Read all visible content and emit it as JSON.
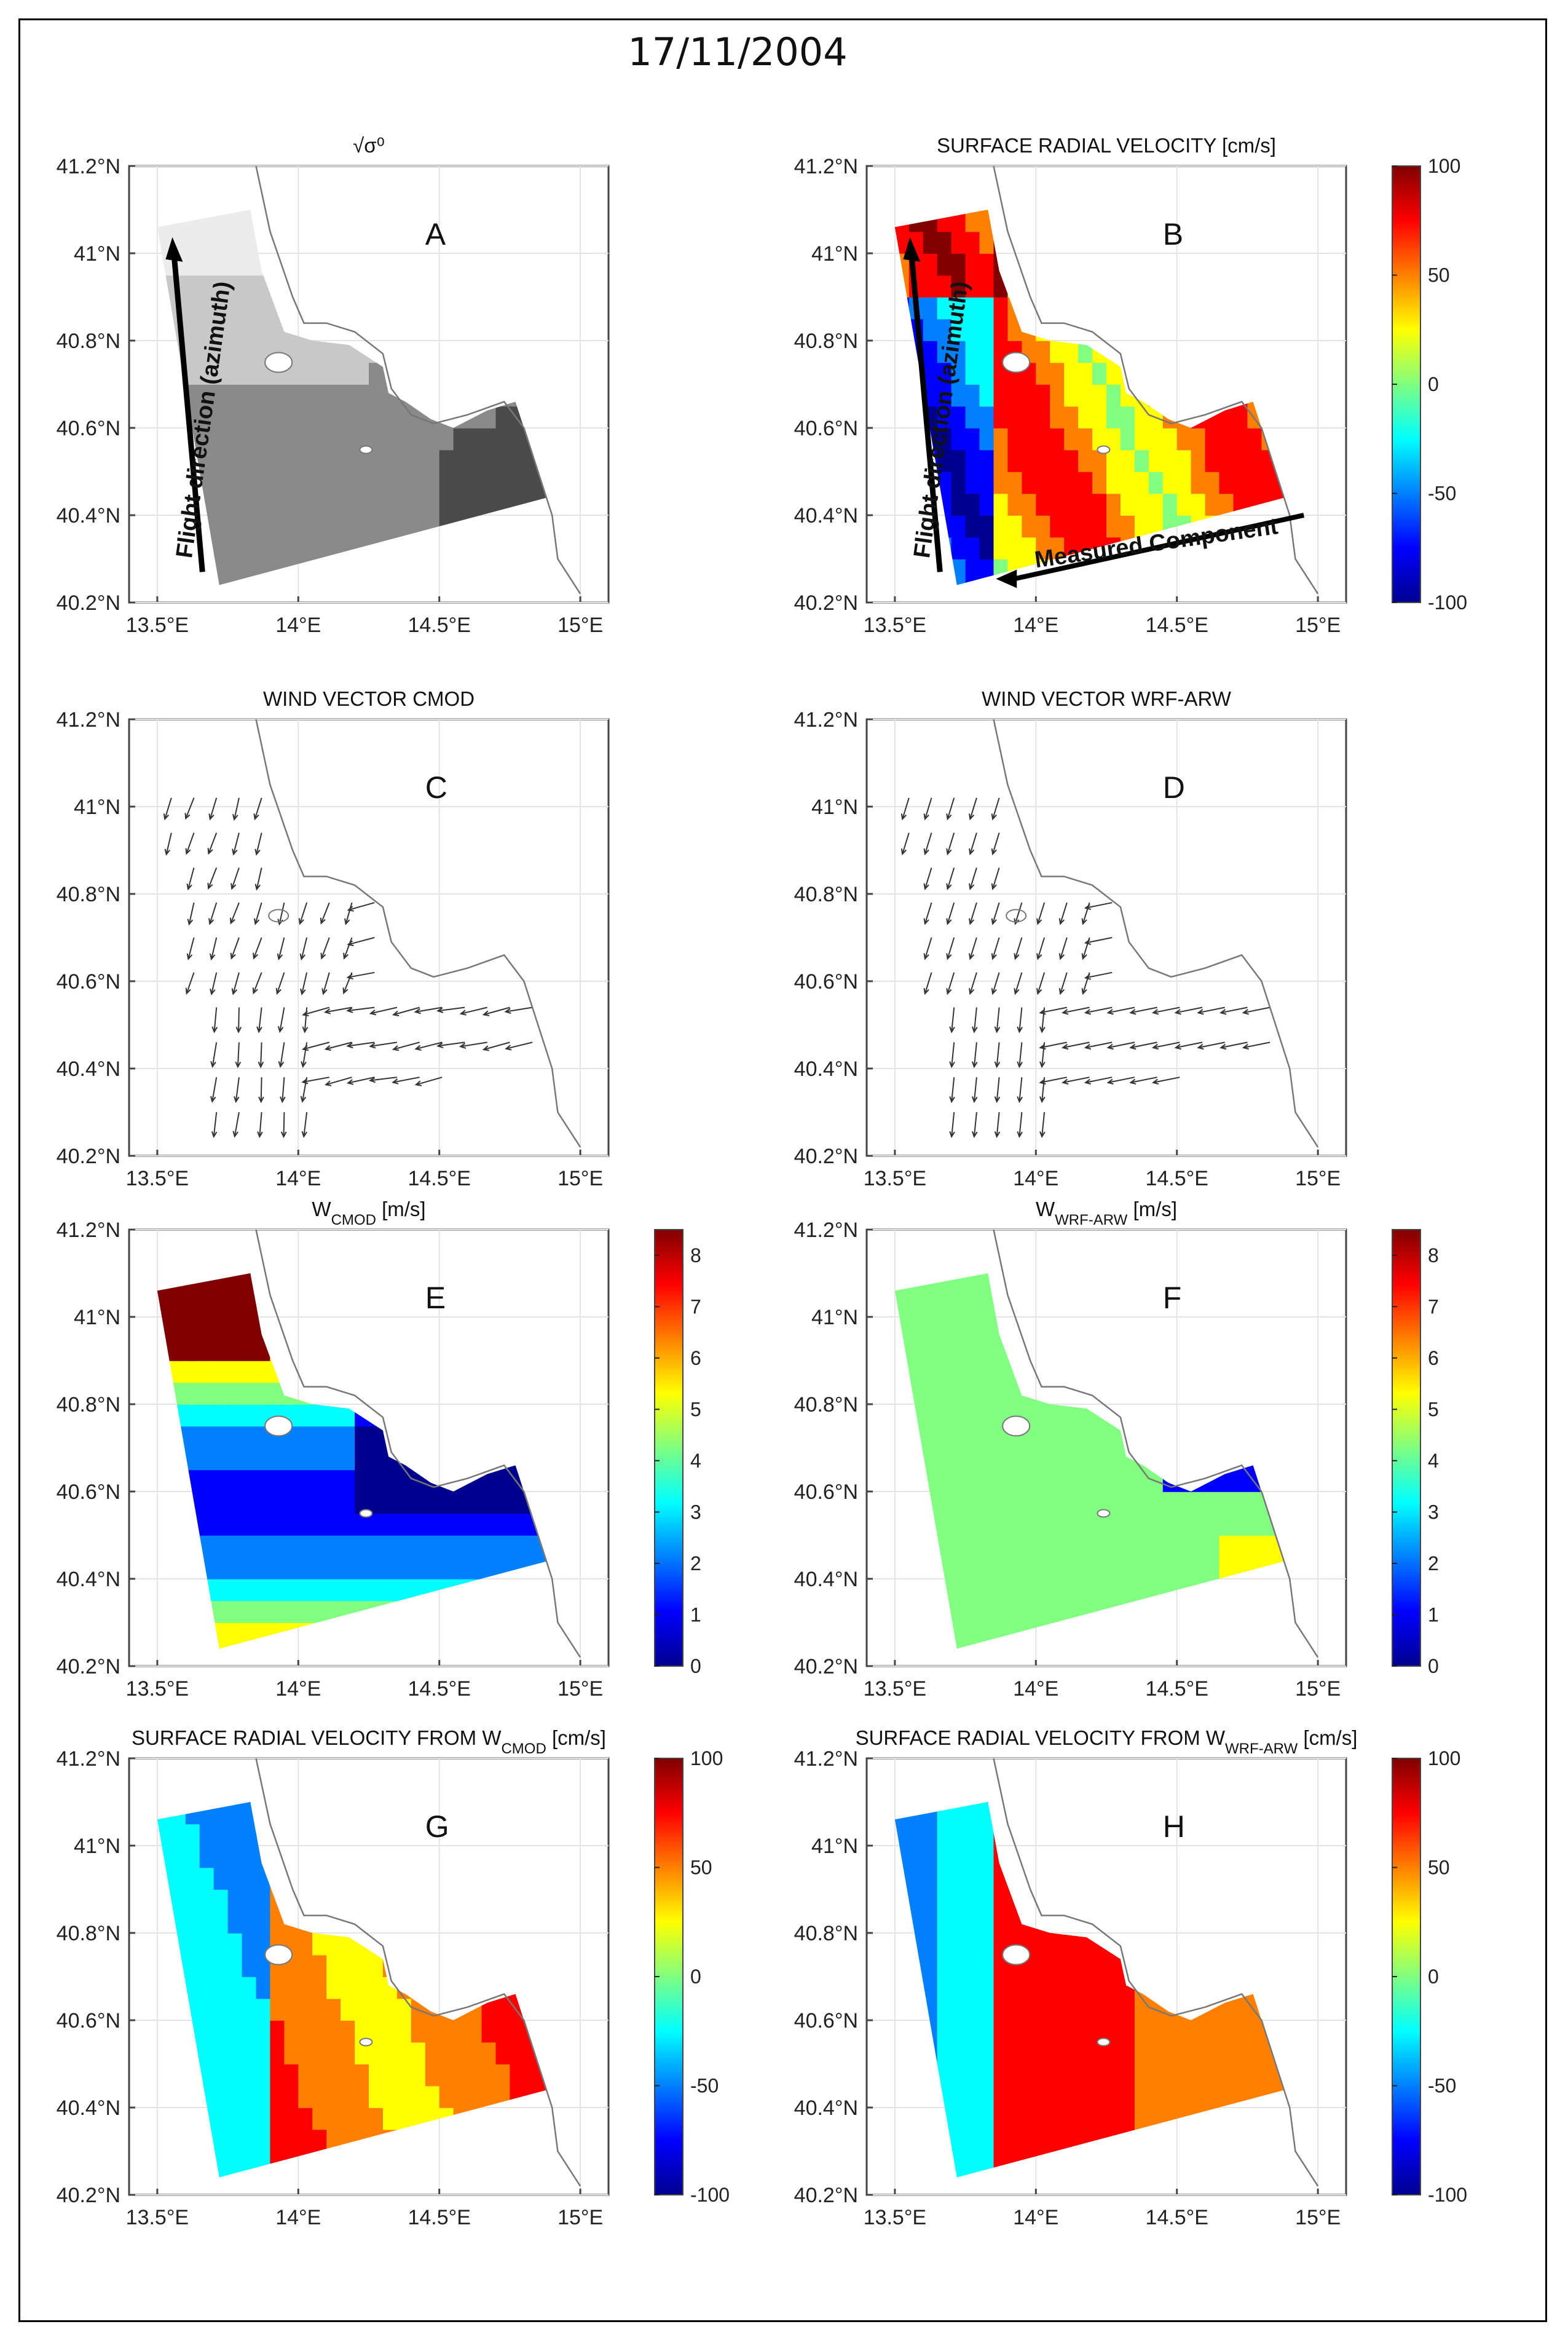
{
  "figure_title": "17/11/2004",
  "axes": {
    "lat_ticks": [
      "41.2°N",
      "41°N",
      "40.8°N",
      "40.6°N",
      "40.4°N",
      "40.2°N"
    ],
    "lat_values": [
      41.2,
      41.0,
      40.8,
      40.6,
      40.4,
      40.2
    ],
    "lon_ticks": [
      "13.5°E",
      "14°E",
      "14.5°E",
      "15°E"
    ],
    "lon_values": [
      13.5,
      14.0,
      14.5,
      15.0
    ],
    "xlim": [
      13.4,
      15.1
    ],
    "ylim": [
      40.2,
      41.2
    ]
  },
  "colormaps": {
    "gray": [
      "#4a4a4a",
      "#8a8a8a",
      "#c8c8c8",
      "#ececec"
    ],
    "jet": [
      "#00008f",
      "#0000ff",
      "#0080ff",
      "#00ffff",
      "#80ff80",
      "#ffff00",
      "#ff8000",
      "#ff0000",
      "#800000"
    ]
  },
  "panels": [
    {
      "id": "A",
      "letter": "A",
      "title": "√σ⁰",
      "type": "image",
      "cmap": "gray",
      "annotations": {
        "flight": "Flight direction (azimuth)"
      }
    },
    {
      "id": "B",
      "letter": "B",
      "title": "SURFACE RADIAL VELOCITY [cm/s]",
      "type": "image",
      "cmap": "jet",
      "colorbar": {
        "ticks": [
          "100",
          "50",
          "0",
          "-50",
          "-100"
        ],
        "range": [
          -100,
          100
        ]
      },
      "annotations": {
        "flight": "Flight direction (azimuth)",
        "measured": "Measured Component"
      }
    },
    {
      "id": "C",
      "letter": "C",
      "title": "WIND VECTOR CMOD",
      "type": "quiver"
    },
    {
      "id": "D",
      "letter": "D",
      "title": "WIND VECTOR WRF-ARW",
      "type": "quiver"
    },
    {
      "id": "E",
      "letter": "E",
      "title_main": "W",
      "title_sub": "CMOD",
      "title_unit": "  [m/s]",
      "type": "image",
      "cmap": "jet",
      "colorbar": {
        "ticks": [
          "8",
          "7",
          "6",
          "5",
          "4",
          "3",
          "2",
          "1",
          "0"
        ],
        "range": [
          0,
          8.5
        ]
      }
    },
    {
      "id": "F",
      "letter": "F",
      "title_main": "W",
      "title_sub": "WRF-ARW",
      "title_unit": "  [m/s]",
      "type": "image",
      "cmap": "jet",
      "colorbar": {
        "ticks": [
          "8",
          "7",
          "6",
          "5",
          "4",
          "3",
          "2",
          "1",
          "0"
        ],
        "range": [
          0,
          8.5
        ]
      }
    },
    {
      "id": "G",
      "letter": "G",
      "title_main": "SURFACE RADIAL VELOCITY FROM W",
      "title_sub": "CMOD",
      "title_unit": " [cm/s]",
      "type": "image",
      "cmap": "jet",
      "colorbar": {
        "ticks": [
          "100",
          "50",
          "0",
          "-50",
          "-100"
        ],
        "range": [
          -100,
          100
        ]
      }
    },
    {
      "id": "H",
      "letter": "H",
      "title_main": "SURFACE RADIAL VELOCITY FROM W",
      "title_sub": "WRF-ARW",
      "title_unit": " [cm/s]",
      "type": "image",
      "cmap": "jet",
      "colorbar": {
        "ticks": [
          "100",
          "50",
          "0",
          "-50",
          "-100"
        ],
        "range": [
          -100,
          100
        ]
      }
    }
  ]
}
